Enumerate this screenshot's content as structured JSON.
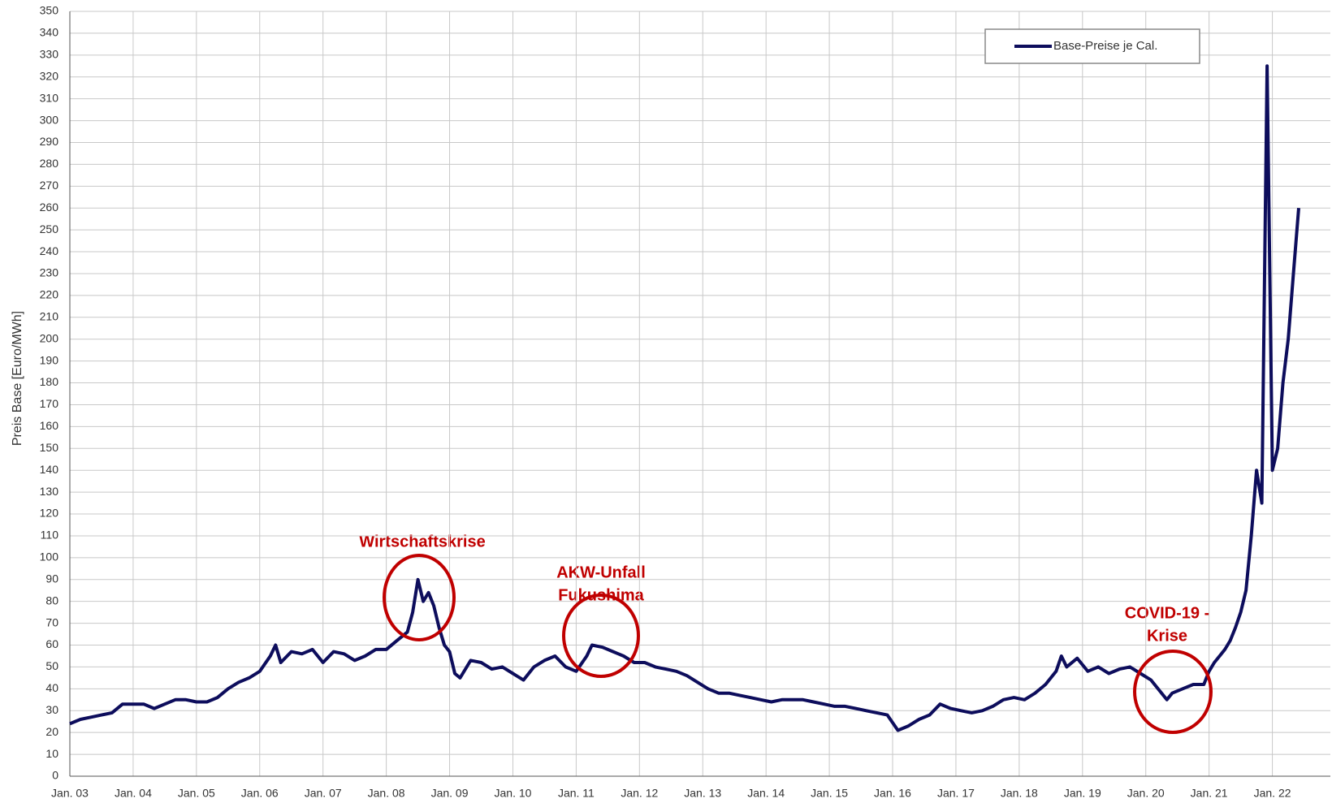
{
  "chart_data": {
    "type": "line",
    "y_label": "Preis Base [Euro/MWh]",
    "legend": "upper right",
    "grid": true,
    "ylim": [
      0,
      350
    ],
    "yticks": [
      0,
      10,
      20,
      30,
      40,
      50,
      60,
      70,
      80,
      90,
      100,
      110,
      120,
      130,
      140,
      150,
      160,
      170,
      180,
      190,
      200,
      210,
      220,
      230,
      240,
      250,
      260,
      270,
      280,
      290,
      300,
      310,
      320,
      330,
      340,
      350
    ],
    "xlim": [
      "2003-01",
      "2022-12"
    ],
    "xticks": [
      {
        "value": "2003-01",
        "label": "Jan. 03"
      },
      {
        "value": "2004-01",
        "label": "Jan. 04"
      },
      {
        "value": "2005-01",
        "label": "Jan. 05"
      },
      {
        "value": "2006-01",
        "label": "Jan. 06"
      },
      {
        "value": "2007-01",
        "label": "Jan. 07"
      },
      {
        "value": "2008-01",
        "label": "Jan. 08"
      },
      {
        "value": "2009-01",
        "label": "Jan. 09"
      },
      {
        "value": "2010-01",
        "label": "Jan. 10"
      },
      {
        "value": "2011-01",
        "label": "Jan. 11"
      },
      {
        "value": "2012-01",
        "label": "Jan. 12"
      },
      {
        "value": "2013-01",
        "label": "Jan. 13"
      },
      {
        "value": "2014-01",
        "label": "Jan. 14"
      },
      {
        "value": "2015-01",
        "label": "Jan. 15"
      },
      {
        "value": "2016-01",
        "label": "Jan. 16"
      },
      {
        "value": "2017-01",
        "label": "Jan. 17"
      },
      {
        "value": "2018-01",
        "label": "Jan. 18"
      },
      {
        "value": "2019-01",
        "label": "Jan. 19"
      },
      {
        "value": "2020-01",
        "label": "Jan. 20"
      },
      {
        "value": "2021-01",
        "label": "Jan. 21"
      },
      {
        "value": "2022-01",
        "label": "Jan. 22"
      }
    ],
    "x": [
      "2003-01",
      "2003-03",
      "2003-05",
      "2003-07",
      "2003-09",
      "2003-11",
      "2004-01",
      "2004-03",
      "2004-05",
      "2004-07",
      "2004-09",
      "2004-11",
      "2005-01",
      "2005-03",
      "2005-05",
      "2005-07",
      "2005-09",
      "2005-11",
      "2006-01",
      "2006-03",
      "2006-04",
      "2006-05",
      "2006-07",
      "2006-09",
      "2006-11",
      "2007-01",
      "2007-03",
      "2007-05",
      "2007-07",
      "2007-09",
      "2007-11",
      "2008-01",
      "2008-03",
      "2008-05",
      "2008-06",
      "2008-07",
      "2008-08",
      "2008-09",
      "2008-10",
      "2008-11",
      "2008-12",
      "2009-01",
      "2009-02",
      "2009-03",
      "2009-05",
      "2009-07",
      "2009-09",
      "2009-11",
      "2010-01",
      "2010-03",
      "2010-05",
      "2010-07",
      "2010-09",
      "2010-11",
      "2011-01",
      "2011-03",
      "2011-04",
      "2011-06",
      "2011-08",
      "2011-10",
      "2011-12",
      "2012-02",
      "2012-04",
      "2012-06",
      "2012-08",
      "2012-10",
      "2012-12",
      "2013-02",
      "2013-04",
      "2013-06",
      "2013-08",
      "2013-10",
      "2013-12",
      "2014-02",
      "2014-04",
      "2014-06",
      "2014-08",
      "2014-10",
      "2014-12",
      "2015-02",
      "2015-04",
      "2015-06",
      "2015-08",
      "2015-10",
      "2015-12",
      "2016-02",
      "2016-04",
      "2016-06",
      "2016-08",
      "2016-10",
      "2016-12",
      "2017-02",
      "2017-04",
      "2017-06",
      "2017-08",
      "2017-10",
      "2017-12",
      "2018-02",
      "2018-04",
      "2018-06",
      "2018-08",
      "2018-09",
      "2018-10",
      "2018-12",
      "2019-02",
      "2019-04",
      "2019-06",
      "2019-08",
      "2019-10",
      "2019-12",
      "2020-02",
      "2020-04",
      "2020-05",
      "2020-06",
      "2020-08",
      "2020-10",
      "2020-12",
      "2021-01",
      "2021-02",
      "2021-03",
      "2021-04",
      "2021-05",
      "2021-06",
      "2021-07",
      "2021-08",
      "2021-09",
      "2021-10",
      "2021-11",
      "2021-12",
      "2022-01",
      "2022-02",
      "2022-03",
      "2022-04",
      "2022-05",
      "2022-06"
    ],
    "series": [
      {
        "name": "Base-Preise je Cal.",
        "color": "#0d0d5c",
        "values": [
          24,
          26,
          27,
          28,
          29,
          33,
          33,
          33,
          31,
          33,
          35,
          35,
          34,
          34,
          36,
          40,
          43,
          45,
          48,
          55,
          60,
          52,
          57,
          56,
          58,
          52,
          57,
          56,
          53,
          55,
          58,
          58,
          62,
          66,
          75,
          90,
          80,
          84,
          78,
          68,
          60,
          57,
          47,
          45,
          53,
          52,
          49,
          50,
          47,
          44,
          50,
          53,
          55,
          50,
          48,
          55,
          60,
          59,
          57,
          55,
          52,
          52,
          50,
          49,
          48,
          46,
          43,
          40,
          38,
          38,
          37,
          36,
          35,
          34,
          35,
          35,
          35,
          34,
          33,
          32,
          32,
          31,
          30,
          29,
          28,
          21,
          23,
          26,
          28,
          33,
          31,
          30,
          29,
          30,
          32,
          35,
          36,
          35,
          38,
          42,
          48,
          55,
          50,
          54,
          48,
          50,
          47,
          49,
          50,
          47,
          44,
          38,
          35,
          38,
          40,
          42,
          42,
          48,
          52,
          55,
          58,
          62,
          68,
          75,
          85,
          110,
          140,
          125,
          325,
          140,
          150,
          180,
          200,
          230,
          260
        ]
      }
    ],
    "annotations": [
      "Wirtschaftskrise",
      "AKW-Unfall",
      "Fukushima",
      "COVID-19 -",
      "Krise"
    ]
  }
}
